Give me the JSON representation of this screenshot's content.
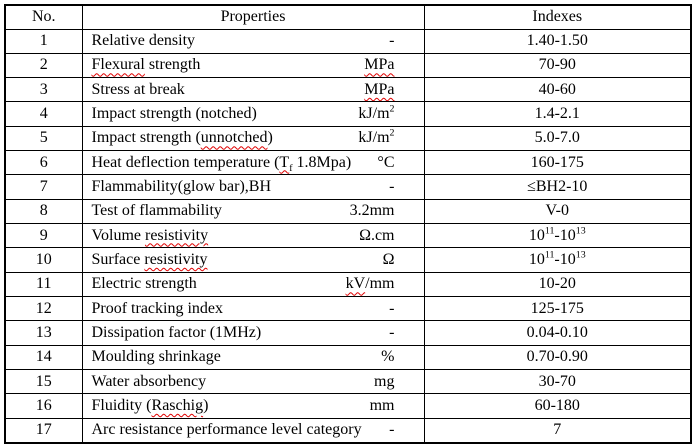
{
  "table": {
    "columns": [
      "No.",
      "Properties",
      "Indexes"
    ],
    "rows": [
      {
        "no": "1",
        "name_html": "Relative density",
        "unit_html": "-",
        "index_html": "1.40-1.50"
      },
      {
        "no": "2",
        "name_html": "<span class='sq'>Flexural</span> strength",
        "unit_html": "<span class='sq'>MPa</span>",
        "index_html": "70-90"
      },
      {
        "no": "3",
        "name_html": "Stress at break",
        "unit_html": "<span class='sq'>MPa</span>",
        "index_html": "40-60"
      },
      {
        "no": "4",
        "name_html": "Impact strength (notched)",
        "unit_html": "kJ/m<sup>2</sup>",
        "index_html": "1.4-2.1"
      },
      {
        "no": "5",
        "name_html": "Impact strength (<span class='sq'>unnotched</span>)",
        "unit_html": "kJ/m<sup>2</sup>",
        "index_html": "5.0-7.0"
      },
      {
        "no": "6",
        "name_html": "Heat deflection temperature (<span class='sq'>T<sub>f</sub></span> 1.8Mpa)",
        "unit_html": "°C",
        "index_html": "160-175"
      },
      {
        "no": "7",
        "name_html": "Flammability(glow bar),BH",
        "unit_html": "-",
        "index_html": "≤BH2-10"
      },
      {
        "no": "8",
        "name_html": "Test of flammability",
        "unit_html": "3.2mm",
        "index_html": "V-0"
      },
      {
        "no": "9",
        "name_html": "Volume <span class='sq'>resistivity</span>",
        "unit_html": "Ω.cm",
        "index_html": "10<sup>11</sup>-10<sup>13</sup>"
      },
      {
        "no": "10",
        "name_html": "Surface <span class='sq'>resistivity</span>",
        "unit_html": "Ω",
        "index_html": "10<sup>11</sup>-10<sup>13</sup>"
      },
      {
        "no": "11",
        "name_html": "Electric strength",
        "unit_html": "<span class='sq'>kV</span>/mm",
        "index_html": "10-20"
      },
      {
        "no": "12",
        "name_html": "Proof tracking index",
        "unit_html": "-",
        "index_html": "125-175"
      },
      {
        "no": "13",
        "name_html": "Dissipation factor (1MHz)",
        "unit_html": "-",
        "index_html": "0.04-0.10"
      },
      {
        "no": "14",
        "name_html": "Moulding shrinkage",
        "unit_html": "%",
        "index_html": "0.70-0.90"
      },
      {
        "no": "15",
        "name_html": "Water absorbency",
        "unit_html": "mg",
        "index_html": "30-70"
      },
      {
        "no": "16",
        "name_html": "Fluidity (<span class='sq'>Raschig</span>)",
        "unit_html": "mm",
        "index_html": "60-180"
      },
      {
        "no": "17",
        "name_html": "Arc resistance performance level category",
        "unit_html": "-",
        "index_html": "7"
      }
    ]
  },
  "colors": {
    "background": "#ffffff",
    "text": "#000000",
    "border": "#000000",
    "spellcheck_underline": "#e00000"
  }
}
